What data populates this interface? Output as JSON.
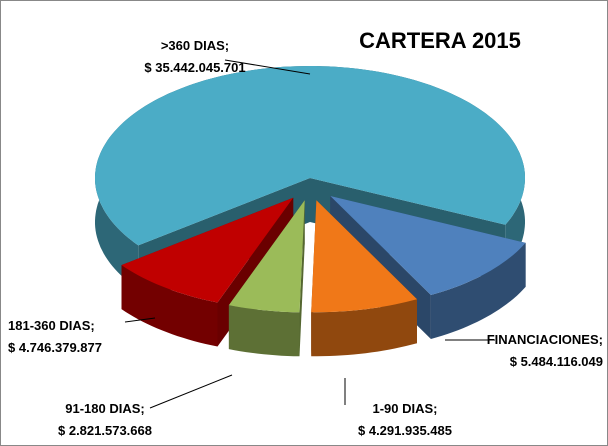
{
  "chart_data": {
    "type": "pie3d",
    "title": "CARTERA 2015",
    "categories": [
      ">360 DIAS",
      "FINANCIACIONES",
      "1-90 DIAS",
      "91-180 DIAS",
      "181-360 DIAS"
    ],
    "values": [
      35442045701,
      5484116049,
      4291935485,
      2821573668,
      4746379877
    ],
    "value_labels": [
      "$ 35.442.045.701",
      "$ 5.484.116.049",
      "$ 4.291.935.485",
      "$ 2.821.573.668",
      "$ 4.746.379.877"
    ],
    "label_separator": ";",
    "colors": [
      "#4bacc6",
      "#4f81bd",
      "#f07818",
      "#9bbb59",
      "#c00000"
    ]
  }
}
